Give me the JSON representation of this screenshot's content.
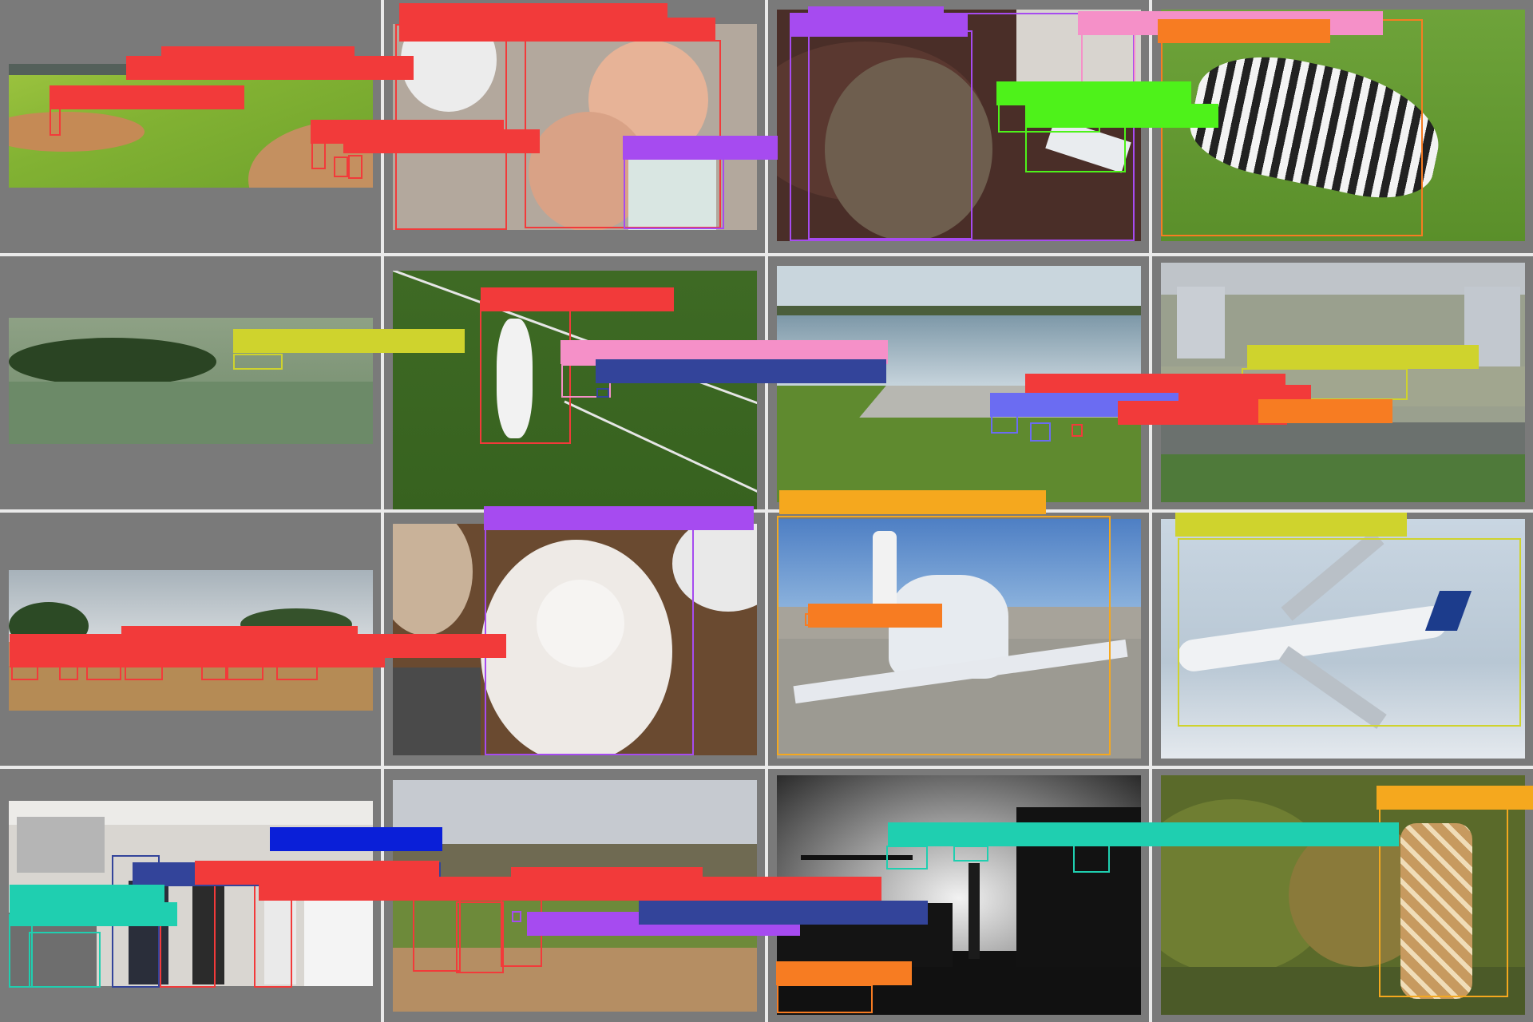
{
  "colors": {
    "red": "#f23a3a",
    "purple": "#a64bf0",
    "pink": "#f590c8",
    "orange": "#f77c22",
    "green": "#4ef21a",
    "olive": "#cfd32d",
    "navy": "#33449a",
    "periwinkle": "#6b6cf2",
    "gold": "#f5a81e",
    "blue": "#0a1fd8",
    "teal": "#1fcfb0",
    "background": "#7a7a7a"
  },
  "panels": [
    {
      "scene": "baseball-field",
      "objects": [
        {
          "cls": "red"
        },
        {
          "cls": "red"
        },
        {
          "cls": "red"
        },
        {
          "cls": "red"
        }
      ]
    },
    {
      "scene": "baby-with-cake",
      "objects": [
        {
          "cls": "red"
        },
        {
          "cls": "red"
        },
        {
          "cls": "purple"
        }
      ]
    },
    {
      "scene": "cat-on-sofa",
      "objects": [
        {
          "cls": "purple"
        },
        {
          "cls": "purple"
        },
        {
          "cls": "pink"
        },
        {
          "cls": "green"
        },
        {
          "cls": "green"
        }
      ]
    },
    {
      "scene": "zebra-grazing",
      "objects": [
        {
          "cls": "orange"
        }
      ]
    },
    {
      "scene": "airplane-over-lake",
      "objects": [
        {
          "cls": "olive"
        }
      ]
    },
    {
      "scene": "tennis-player",
      "objects": [
        {
          "cls": "red"
        },
        {
          "cls": "pink"
        },
        {
          "cls": "navy"
        }
      ]
    },
    {
      "scene": "river-waterfront",
      "objects": [
        {
          "cls": "red"
        },
        {
          "cls": "red"
        },
        {
          "cls": "periwinkle"
        }
      ]
    },
    {
      "scene": "airport-highway",
      "objects": [
        {
          "cls": "olive"
        },
        {
          "cls": "red"
        },
        {
          "cls": "orange"
        }
      ]
    },
    {
      "scene": "savanna-elephants",
      "objects": [
        {
          "cls": "red"
        },
        {
          "cls": "red"
        },
        {
          "cls": "red"
        },
        {
          "cls": "red"
        },
        {
          "cls": "red"
        },
        {
          "cls": "red"
        },
        {
          "cls": "red"
        }
      ]
    },
    {
      "scene": "teddy-bear",
      "objects": [
        {
          "cls": "purple"
        }
      ]
    },
    {
      "scene": "small-propeller-plane",
      "objects": [
        {
          "cls": "gold"
        },
        {
          "cls": "orange"
        }
      ]
    },
    {
      "scene": "air-france-jet",
      "objects": [
        {
          "cls": "olive"
        }
      ]
    },
    {
      "scene": "kitchen-people",
      "objects": [
        {
          "cls": "blue"
        },
        {
          "cls": "navy"
        },
        {
          "cls": "red"
        },
        {
          "cls": "red"
        },
        {
          "cls": "teal"
        },
        {
          "cls": "teal"
        }
      ]
    },
    {
      "scene": "baseball-at-bat",
      "objects": [
        {
          "cls": "red"
        },
        {
          "cls": "red"
        },
        {
          "cls": "red"
        },
        {
          "cls": "purple"
        },
        {
          "cls": "navy"
        }
      ]
    },
    {
      "scene": "city-street-silhouette",
      "objects": [
        {
          "cls": "teal"
        },
        {
          "cls": "teal"
        },
        {
          "cls": "teal"
        },
        {
          "cls": "orange"
        }
      ]
    },
    {
      "scene": "giraffe-in-trees",
      "objects": [
        {
          "cls": "gold"
        }
      ]
    }
  ]
}
